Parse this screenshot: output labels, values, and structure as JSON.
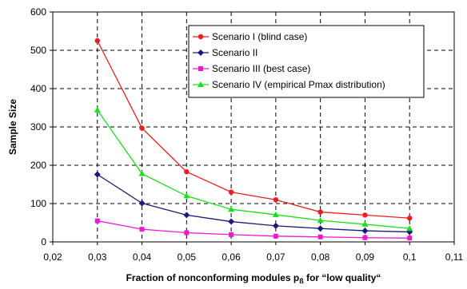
{
  "chart_data": {
    "type": "line",
    "title": "",
    "xlabel": "Fraction of nonconforming modules p",
    "xlabel_sub": "ß",
    "xlabel_suffix": " for “low quality“",
    "ylabel": "Sample Size",
    "xlim": [
      0.02,
      0.11
    ],
    "ylim": [
      0,
      600
    ],
    "xticks": [
      "0,02",
      "0,03",
      "0,04",
      "0,05",
      "0,06",
      "0,07",
      "0,08",
      "0,09",
      "0,1",
      "0,11"
    ],
    "xtick_values": [
      0.02,
      0.03,
      0.04,
      0.05,
      0.06,
      0.07,
      0.08,
      0.09,
      0.1,
      0.11
    ],
    "yticks": [
      "0",
      "100",
      "200",
      "300",
      "400",
      "500",
      "600"
    ],
    "ytick_values": [
      0,
      100,
      200,
      300,
      400,
      500,
      600
    ],
    "grid": true,
    "legend_position": "top-right",
    "x": [
      0.03,
      0.04,
      0.05,
      0.06,
      0.07,
      0.08,
      0.09,
      0.1
    ],
    "series": [
      {
        "name": "Scenario I (blind case)",
        "color": "#ee1c1c",
        "marker": "circle",
        "values": [
          525,
          297,
          183,
          130,
          110,
          78,
          70,
          62
        ]
      },
      {
        "name": "Scenario II",
        "color": "#1a1a7a",
        "marker": "diamond",
        "values": [
          176,
          101,
          70,
          53,
          42,
          35,
          29,
          26
        ]
      },
      {
        "name": "Scenario III (best case)",
        "color": "#ee18d0",
        "marker": "square",
        "values": [
          55,
          33,
          24,
          19,
          15,
          13,
          11,
          10
        ]
      },
      {
        "name": "Scenario IV (empirical Pmax distribution)",
        "color": "#18e018",
        "marker": "triangle",
        "values": [
          344,
          178,
          120,
          85,
          71,
          56,
          46,
          35
        ]
      }
    ]
  }
}
